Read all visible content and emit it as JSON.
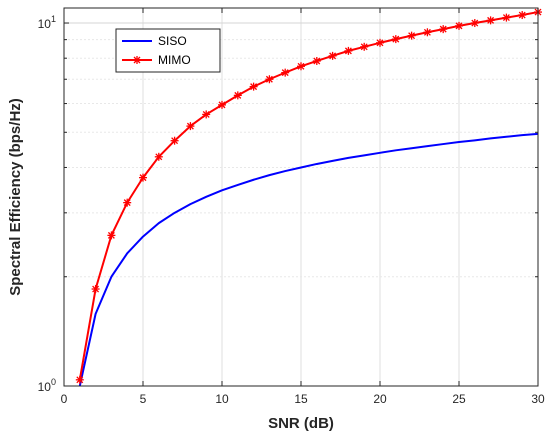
{
  "chart_data": {
    "type": "line",
    "title": "",
    "xlabel": "SNR (dB)",
    "ylabel": "Spectral Efficiency (bps/Hz)",
    "xlim": [
      0,
      30
    ],
    "ylim": [
      1,
      11
    ],
    "yscale": "log",
    "grid": true,
    "legend_position": "top-left",
    "x_ticks": [
      0,
      5,
      10,
      15,
      20,
      25,
      30
    ],
    "x_tick_labels": [
      "0",
      "5",
      "10",
      "15",
      "20",
      "25",
      "30"
    ],
    "y_ticks": [
      1,
      10
    ],
    "y_tick_labels": [
      "10^0",
      "10^1"
    ],
    "x": [
      1,
      2,
      3,
      4,
      5,
      6,
      7,
      8,
      9,
      10,
      11,
      12,
      13,
      14,
      15,
      16,
      17,
      18,
      19,
      20,
      21,
      22,
      23,
      24,
      25,
      26,
      27,
      28,
      29,
      30
    ],
    "series": [
      {
        "name": "SISO",
        "color": "#0000ff",
        "marker": "none",
        "values": [
          1.0,
          1.58,
          2.0,
          2.32,
          2.58,
          2.81,
          3.0,
          3.17,
          3.32,
          3.46,
          3.58,
          3.7,
          3.81,
          3.91,
          4.0,
          4.09,
          4.17,
          4.25,
          4.32,
          4.39,
          4.46,
          4.52,
          4.58,
          4.64,
          4.7,
          4.75,
          4.81,
          4.86,
          4.91,
          4.95
        ]
      },
      {
        "name": "MIMO",
        "color": "#ff0000",
        "marker": "asterisk",
        "values": [
          1.04,
          1.85,
          2.6,
          3.2,
          3.75,
          4.28,
          4.74,
          5.2,
          5.6,
          5.95,
          6.32,
          6.68,
          7.0,
          7.3,
          7.6,
          7.86,
          8.12,
          8.38,
          8.6,
          8.82,
          9.03,
          9.23,
          9.43,
          9.62,
          9.82,
          10.0,
          10.17,
          10.35,
          10.52,
          10.72
        ]
      }
    ]
  }
}
